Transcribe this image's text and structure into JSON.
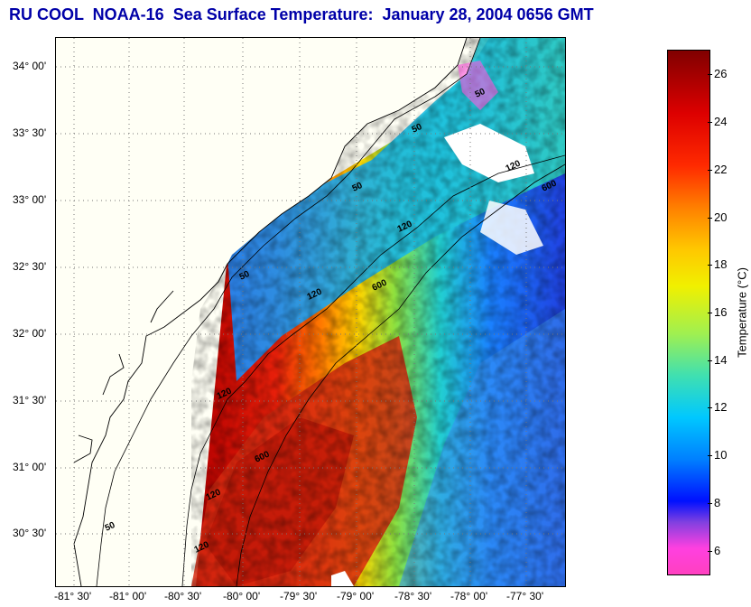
{
  "title": "RU COOL  NOAA-16  Sea Surface Temperature:  January 28, 2004 0656 GMT",
  "map": {
    "lat_labels": [
      "34° 00'",
      "33° 30'",
      "33° 00'",
      "32° 30'",
      "32° 00'",
      "31° 30'",
      "31° 00'",
      "30° 30'"
    ],
    "lon_labels": [
      "-81° 30'",
      "-81° 00'",
      "-80° 30'",
      "-80° 00'",
      "-79° 30'",
      "-79° 00'",
      "-78° 30'",
      "-78° 00'",
      "-77° 30'"
    ],
    "isobath_labels": [
      "50",
      "50",
      "50",
      "50",
      "50",
      "120",
      "120",
      "120",
      "120",
      "120",
      "120",
      "600",
      "600",
      "600"
    ],
    "colors": {
      "land": "#fffff5",
      "cloud": "#ffffff",
      "grid": "#888888",
      "contour": "#000000"
    }
  },
  "colorbar": {
    "title": "Temperature (°C)",
    "ticks": [
      "26",
      "24",
      "22",
      "20",
      "18",
      "16",
      "14",
      "12",
      "10",
      "8",
      "6"
    ],
    "range": [
      5,
      27
    ]
  }
}
